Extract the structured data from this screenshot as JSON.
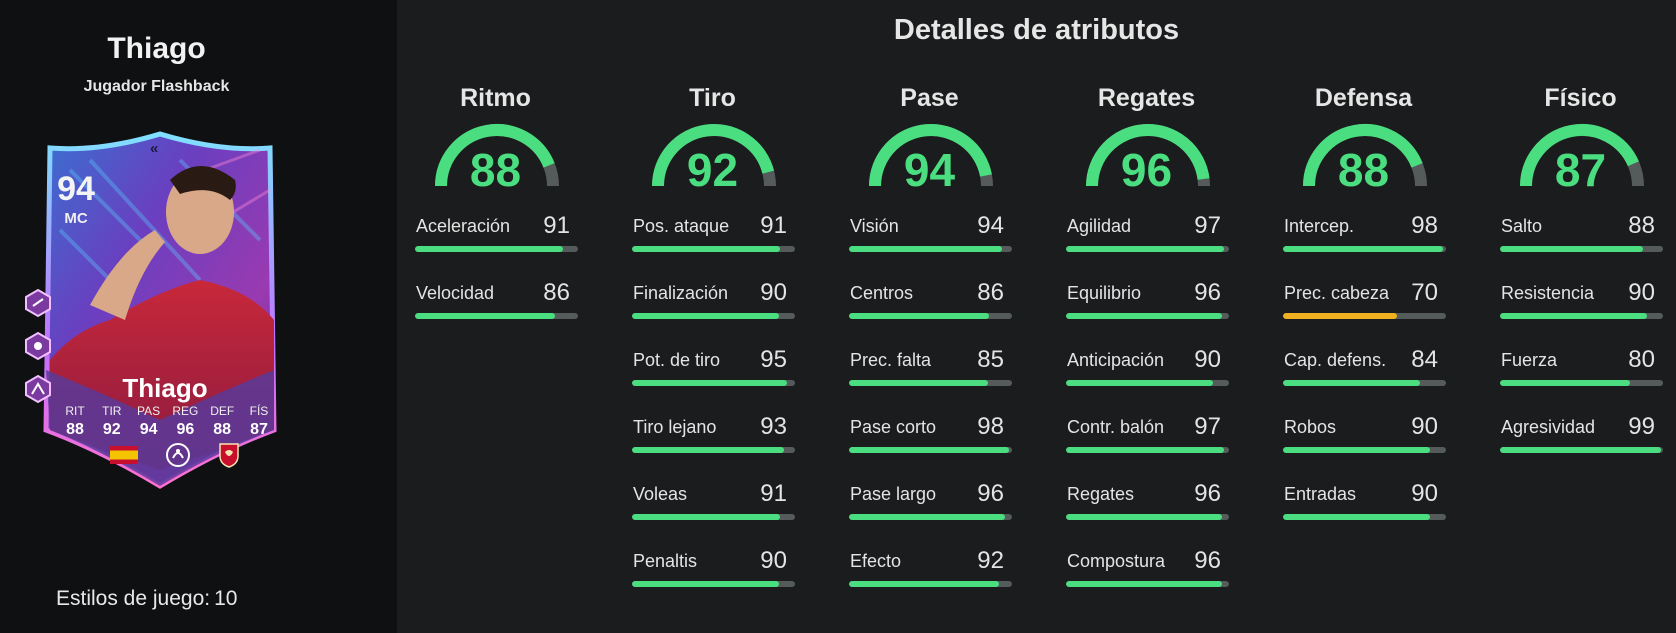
{
  "player": {
    "name": "Thiago",
    "card_type": "Jugador Flashback",
    "playstyles_label": "Estilos de juego:",
    "playstyles_count": "10"
  },
  "card": {
    "rating": "94",
    "position": "MC",
    "name": "Thiago",
    "stats": [
      {
        "label": "RIT",
        "value": "88"
      },
      {
        "label": "TIR",
        "value": "92"
      },
      {
        "label": "PAS",
        "value": "94"
      },
      {
        "label": "REG",
        "value": "96"
      },
      {
        "label": "DEF",
        "value": "88"
      },
      {
        "label": "FÍS",
        "value": "87"
      }
    ],
    "icons": [
      "spain-flag-icon",
      "premier-league-icon",
      "liverpool-crest-icon"
    ]
  },
  "section_title": "Detalles de atributos",
  "colors": {
    "green": "#4ade80",
    "amber": "#f0b020",
    "track": "#555a5b"
  },
  "categories": [
    {
      "name": "Ritmo",
      "value": 88,
      "attributes": [
        {
          "label": "Aceleración",
          "value": 91
        },
        {
          "label": "Velocidad",
          "value": 86
        }
      ]
    },
    {
      "name": "Tiro",
      "value": 92,
      "attributes": [
        {
          "label": "Pos. ataque",
          "value": 91
        },
        {
          "label": "Finalización",
          "value": 90
        },
        {
          "label": "Pot. de tiro",
          "value": 95
        },
        {
          "label": "Tiro lejano",
          "value": 93
        },
        {
          "label": "Voleas",
          "value": 91
        },
        {
          "label": "Penaltis",
          "value": 90
        }
      ]
    },
    {
      "name": "Pase",
      "value": 94,
      "attributes": [
        {
          "label": "Visión",
          "value": 94
        },
        {
          "label": "Centros",
          "value": 86
        },
        {
          "label": "Prec. falta",
          "value": 85
        },
        {
          "label": "Pase corto",
          "value": 98
        },
        {
          "label": "Pase largo",
          "value": 96
        },
        {
          "label": "Efecto",
          "value": 92
        }
      ]
    },
    {
      "name": "Regates",
      "value": 96,
      "attributes": [
        {
          "label": "Agilidad",
          "value": 97
        },
        {
          "label": "Equilibrio",
          "value": 96
        },
        {
          "label": "Anticipación",
          "value": 90
        },
        {
          "label": "Contr. balón",
          "value": 97
        },
        {
          "label": "Regates",
          "value": 96
        },
        {
          "label": "Compostura",
          "value": 96
        }
      ]
    },
    {
      "name": "Defensa",
      "value": 88,
      "attributes": [
        {
          "label": "Intercep.",
          "value": 98
        },
        {
          "label": "Prec. cabeza",
          "value": 70
        },
        {
          "label": "Cap. defens.",
          "value": 84
        },
        {
          "label": "Robos",
          "value": 90
        },
        {
          "label": "Entradas",
          "value": 90
        }
      ]
    },
    {
      "name": "Físico",
      "value": 87,
      "attributes": [
        {
          "label": "Salto",
          "value": 88
        },
        {
          "label": "Resistencia",
          "value": 90
        },
        {
          "label": "Fuerza",
          "value": 80
        },
        {
          "label": "Agresividad",
          "value": 99
        }
      ]
    }
  ]
}
